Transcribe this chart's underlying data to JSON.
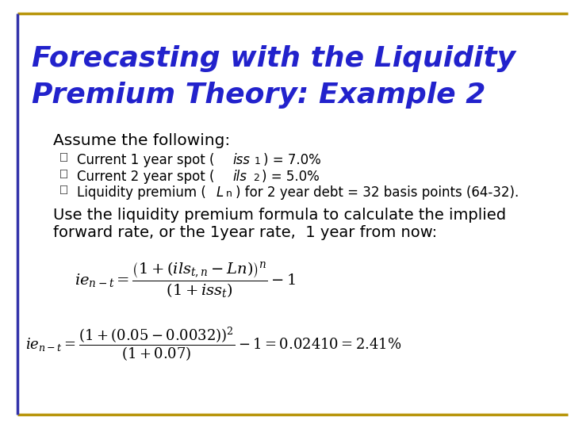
{
  "bg_color": "#FFFFFF",
  "border_color_top": "#B8960C",
  "border_color_left": "#3333AA",
  "title_color": "#2222CC",
  "bullet_color": "#8B6914",
  "text_color": "#000000",
  "title_line1": "Forecasting with the Liquidity",
  "title_line2": "Premium Theory: Example 2",
  "bullet1_text": "Assume the following:",
  "sub1_pre": "Current 1 year spot (",
  "sub1_italic": "iss",
  "sub1_sub": "1",
  "sub1_post": ") = 7.0%",
  "sub2_pre": "Current 2 year spot (",
  "sub2_italic": "ils",
  "sub2_sub": "2",
  "sub2_post": ") = 5.0%",
  "sub3_pre": "Liquidity premium (",
  "sub3_italic": "L",
  "sub3_sub": "n",
  "sub3_post": ") for 2 year debt = 32 basis points (64-32).",
  "bullet2_line1": "Use the liquidity premium formula to calculate the implied",
  "bullet2_line2": "forward rate, or the 1year rate,  1 year from now:"
}
